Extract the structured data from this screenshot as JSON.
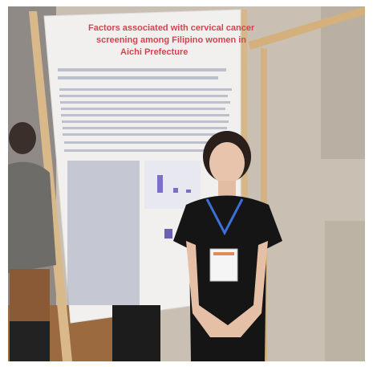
{
  "poster": {
    "title_lines": [
      "Factors associated with cervical cancer",
      "screening among Filipino women in",
      "Aichi Prefecture"
    ]
  }
}
